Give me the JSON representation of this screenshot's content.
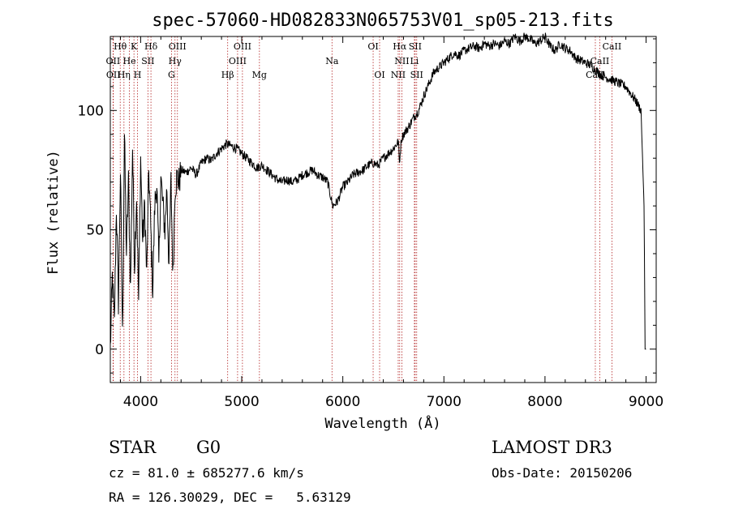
{
  "chart_data": {
    "type": "line",
    "title": "spec-57060-HD082833N065753V01_sp05-213.fits",
    "xlabel": "Wavelength (Å)",
    "ylabel": "Flux (relative)",
    "xlim": [
      3700,
      9100
    ],
    "ylim": [
      -14,
      131
    ],
    "xticks": [
      4000,
      5000,
      6000,
      7000,
      8000,
      9000
    ],
    "yticks": [
      0,
      50,
      100
    ],
    "series": [
      {
        "name": "flux",
        "x": [
          3700,
          3720,
          3740,
          3760,
          3780,
          3800,
          3820,
          3840,
          3860,
          3880,
          3900,
          3920,
          3940,
          3960,
          3980,
          4000,
          4020,
          4040,
          4060,
          4080,
          4100,
          4120,
          4140,
          4160,
          4180,
          4200,
          4220,
          4240,
          4260,
          4280,
          4300,
          4320,
          4340,
          4360,
          4380,
          4400,
          4450,
          4500,
          4550,
          4600,
          4650,
          4700,
          4750,
          4800,
          4850,
          4900,
          4950,
          5000,
          5050,
          5100,
          5150,
          5200,
          5250,
          5300,
          5350,
          5400,
          5450,
          5500,
          5550,
          5600,
          5650,
          5700,
          5750,
          5800,
          5850,
          5900,
          5950,
          6000,
          6050,
          6100,
          6150,
          6200,
          6250,
          6300,
          6350,
          6400,
          6450,
          6500,
          6550,
          6560,
          6580,
          6600,
          6650,
          6700,
          6750,
          6800,
          6850,
          6900,
          6950,
          7000,
          7050,
          7100,
          7150,
          7200,
          7250,
          7300,
          7350,
          7400,
          7450,
          7500,
          7550,
          7600,
          7650,
          7700,
          7750,
          7800,
          7850,
          7900,
          7950,
          8000,
          8050,
          8100,
          8150,
          8200,
          8250,
          8300,
          8350,
          8400,
          8450,
          8500,
          8550,
          8600,
          8650,
          8700,
          8750,
          8800,
          8850,
          8900,
          8950,
          8980,
          8990,
          9000
        ],
        "y": [
          0,
          30,
          10,
          60,
          20,
          75,
          5,
          90,
          40,
          70,
          25,
          85,
          35,
          65,
          20,
          80,
          45,
          60,
          30,
          75,
          50,
          25,
          60,
          70,
          35,
          72,
          60,
          50,
          68,
          35,
          70,
          30,
          68,
          72,
          70,
          75,
          74,
          76,
          73,
          78,
          80,
          79,
          82,
          84,
          86,
          85,
          84,
          82,
          80,
          78,
          76,
          77,
          75,
          73,
          71,
          70,
          71,
          70,
          71,
          73,
          74,
          75,
          73,
          72,
          70,
          60,
          62,
          68,
          70,
          73,
          74,
          75,
          77,
          78,
          77,
          80,
          82,
          84,
          87,
          78,
          88,
          90,
          93,
          97,
          100,
          106,
          111,
          116,
          118,
          120,
          122,
          124,
          123,
          125,
          126,
          127,
          126,
          128,
          127,
          128,
          127,
          129,
          128,
          131,
          129,
          131,
          130,
          128,
          129,
          131,
          127,
          125,
          128,
          126,
          125,
          122,
          121,
          120,
          119,
          117,
          115,
          114,
          113,
          112,
          111,
          110,
          107,
          104,
          100,
          60,
          0,
          0
        ]
      }
    ],
    "lines": [
      {
        "name": "Hθ",
        "x": 3798,
        "row": 0,
        "align": "center"
      },
      {
        "name": "K",
        "x": 3934,
        "row": 0,
        "align": "center"
      },
      {
        "name": "Hδ",
        "x": 4102,
        "row": 0,
        "align": "center"
      },
      {
        "name": "OIII",
        "x": 4364,
        "row": 0,
        "align": "center"
      },
      {
        "name": "OIII",
        "x": 5007,
        "row": 0,
        "align": "center"
      },
      {
        "name": "OI",
        "x": 6300,
        "row": 0,
        "align": "center"
      },
      {
        "name": "Hα",
        "x": 6563,
        "row": 0,
        "align": "center"
      },
      {
        "name": "SII",
        "x": 6716,
        "row": 0,
        "align": "center"
      },
      {
        "name": "CaII",
        "x": 8662,
        "row": 0,
        "align": "center"
      },
      {
        "name": "OII",
        "x": 3727,
        "row": 1,
        "align": "center"
      },
      {
        "name": "He",
        "x": 3889,
        "row": 1,
        "align": "center"
      },
      {
        "name": "SII",
        "x": 4072,
        "row": 1,
        "align": "center"
      },
      {
        "name": "Hγ",
        "x": 4340,
        "row": 1,
        "align": "center"
      },
      {
        "name": "OIII",
        "x": 4959,
        "row": 1,
        "align": "center"
      },
      {
        "name": "Na",
        "x": 5893,
        "row": 1,
        "align": "center"
      },
      {
        "name": "NII",
        "x": 6584,
        "row": 1,
        "align": "center"
      },
      {
        "name": "Li",
        "x": 6708,
        "row": 1,
        "align": "center"
      },
      {
        "name": "CaII",
        "x": 8542,
        "row": 1,
        "align": "center"
      },
      {
        "name": "OII",
        "x": 3730,
        "row": 2,
        "align": "center"
      },
      {
        "name": "Hη",
        "x": 3835,
        "row": 2,
        "align": "center"
      },
      {
        "name": "H",
        "x": 3969,
        "row": 2,
        "align": "center"
      },
      {
        "name": "G",
        "x": 4305,
        "row": 2,
        "align": "center"
      },
      {
        "name": "Hβ",
        "x": 4861,
        "row": 2,
        "align": "center"
      },
      {
        "name": "Mg",
        "x": 5175,
        "row": 2,
        "align": "center"
      },
      {
        "name": "OI",
        "x": 6364,
        "row": 2,
        "align": "center"
      },
      {
        "name": "NII",
        "x": 6548,
        "row": 2,
        "align": "center"
      },
      {
        "name": "SII",
        "x": 6731,
        "row": 2,
        "align": "center"
      },
      {
        "name": "CaII",
        "x": 8498,
        "row": 2,
        "align": "center"
      }
    ]
  },
  "info": {
    "object_class": "STAR",
    "subclass": "G0",
    "survey": "LAMOST DR3",
    "cz": "cz = 81.0 ± 685277.6 km/s",
    "obs_date": "Obs-Date: 20150206",
    "radec": "RA = 126.30029, DEC =   5.63129"
  },
  "colors": {
    "axes": "#000000",
    "spectrum": "#000000",
    "line_marker": "#b22222"
  }
}
